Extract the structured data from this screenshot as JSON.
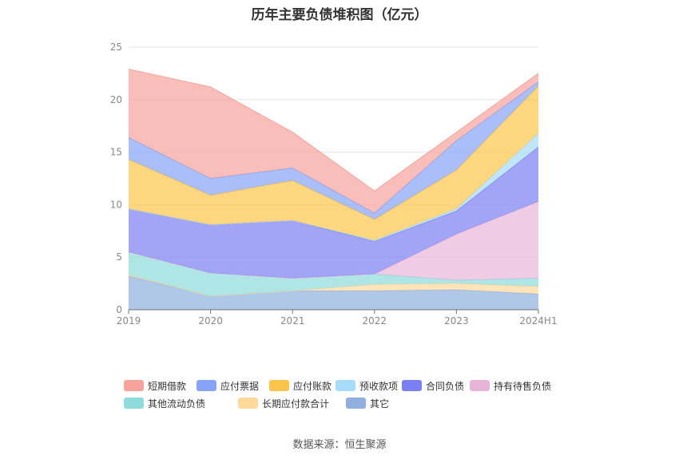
{
  "title": "历年主要负债堆积图（亿元）",
  "source": "数据来源：恒生聚源",
  "chart_data": {
    "type": "area",
    "stacked": true,
    "categories": [
      "2019",
      "2020",
      "2021",
      "2022",
      "2023",
      "2024H1"
    ],
    "ylim": [
      0,
      25
    ],
    "yticks": [
      0,
      5,
      10,
      15,
      20,
      25
    ],
    "grid": true,
    "legend_position": "bottom",
    "series": [
      {
        "name": "其它",
        "color": "#8fb0de",
        "values": [
          3.2,
          1.3,
          1.8,
          1.8,
          1.9,
          1.5
        ]
      },
      {
        "name": "长期应付款合计",
        "color": "#ffd99b",
        "values": [
          0.1,
          0.0,
          0.0,
          0.6,
          0.6,
          0.7
        ]
      },
      {
        "name": "其他流动负债",
        "color": "#8fdada",
        "values": [
          2.2,
          2.2,
          1.2,
          1.0,
          0.3,
          0.8
        ]
      },
      {
        "name": "持有待售负债",
        "color": "#e8b5d8",
        "values": [
          0.0,
          0.0,
          0.0,
          0.0,
          4.4,
          7.3
        ]
      },
      {
        "name": "合同负债",
        "color": "#7b7ff2",
        "values": [
          4.1,
          4.6,
          5.5,
          3.1,
          2.2,
          5.2
        ]
      },
      {
        "name": "预收款项",
        "color": "#a6dcfa",
        "values": [
          0.0,
          0.0,
          0.0,
          0.1,
          0.2,
          1.3
        ]
      },
      {
        "name": "应付账款",
        "color": "#fcc44a",
        "values": [
          4.7,
          2.8,
          3.8,
          2.0,
          3.7,
          4.5
        ]
      },
      {
        "name": "应付票据",
        "color": "#86a3f7",
        "values": [
          2.1,
          1.6,
          1.2,
          0.6,
          2.8,
          0.4
        ]
      },
      {
        "name": "短期借款",
        "color": "#f7a39c",
        "values": [
          6.5,
          8.7,
          3.4,
          2.1,
          0.8,
          0.8
        ]
      }
    ]
  },
  "legend": {
    "row1": [
      {
        "name": "短期借款",
        "color": "#f7a39c"
      },
      {
        "name": "应付票据",
        "color": "#86a3f7"
      },
      {
        "name": "应付账款",
        "color": "#fcc44a"
      },
      {
        "name": "预收款项",
        "color": "#a6dcfa"
      },
      {
        "name": "合同负债",
        "color": "#7b7ff2"
      },
      {
        "name": "持有待售负债",
        "color": "#e8b5d8"
      }
    ],
    "row2": [
      {
        "name": "其他流动负债",
        "color": "#8fdada"
      },
      {
        "name": "长期应付款合计",
        "color": "#ffd99b"
      },
      {
        "name": "其它",
        "color": "#8fb0de"
      }
    ]
  }
}
